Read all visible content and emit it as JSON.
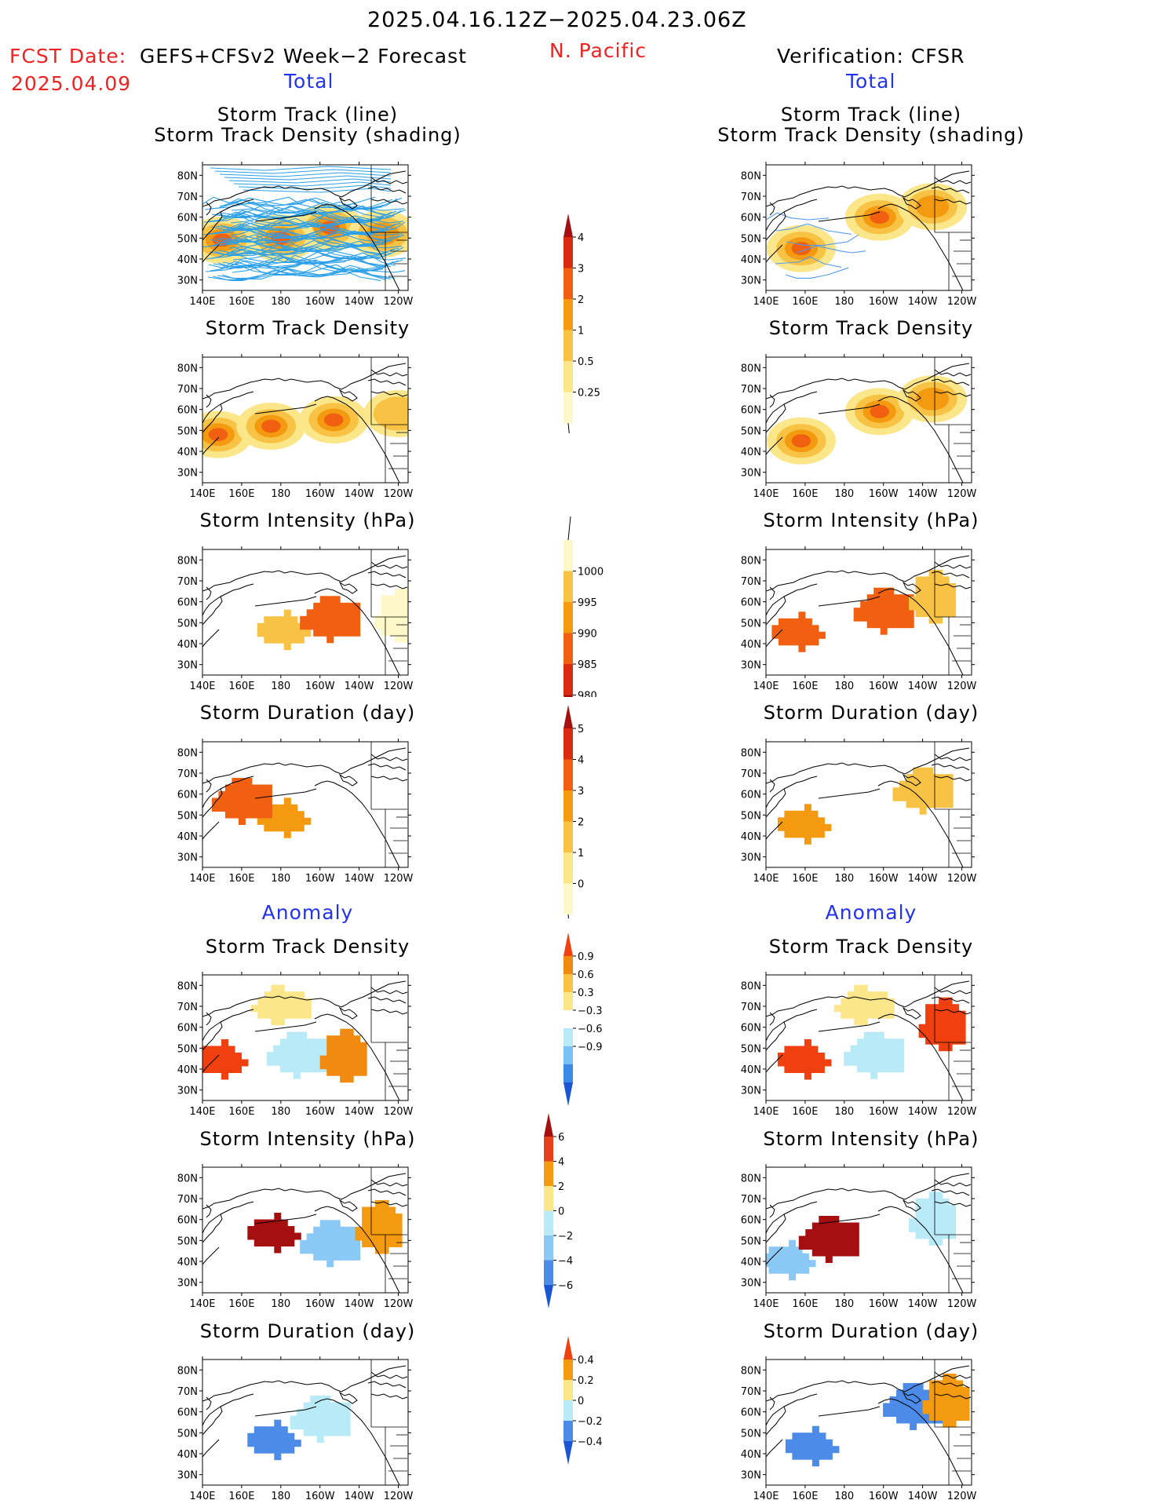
{
  "header": {
    "period": "2025.04.16.12Z−2025.04.23.06Z",
    "region": "N. Pacific",
    "fcst_label": "FCST Date:",
    "fcst_model": "GEFS+CFSv2 Week−2 Forecast",
    "fcst_date": "2025.04.09",
    "verif": "Verification: CFSR",
    "total_left": "Total",
    "total_right": "Total",
    "anom_left": "Anomaly",
    "anom_right": "Anomaly"
  },
  "panel_titles": {
    "track_line": "Storm Track (line)",
    "track_shade": "Storm Track Density (shading)",
    "density": "Storm Track Density",
    "intensity": "Storm Intensity (hPa)",
    "duration": "Storm Duration (day)"
  },
  "axes": {
    "x_ticks": [
      "140E",
      "160E",
      "180",
      "160W",
      "140W",
      "120W"
    ],
    "y_ticks": [
      "80N",
      "70N",
      "60N",
      "50N",
      "40N",
      "30N"
    ]
  },
  "colorbars": {
    "density_total": {
      "labels": [
        "4",
        "3",
        "2",
        "1",
        "0.5",
        "0.25"
      ],
      "colors": [
        "#a50f0f",
        "#d92b10",
        "#f06010",
        "#f49a10",
        "#f8c245",
        "#fbe68a",
        "#fdf8c8"
      ]
    },
    "intensity_total": {
      "labels": [
        "1000",
        "995",
        "990",
        "985",
        "980"
      ],
      "colors": [
        "#fdf8c8",
        "#f8c245",
        "#f49a10",
        "#f06010",
        "#d92b10",
        "#a50f0f"
      ]
    },
    "duration_total": {
      "labels": [
        "5",
        "4",
        "3",
        "2",
        "1",
        "0"
      ],
      "colors": [
        "#a50f0f",
        "#d92b10",
        "#f06010",
        "#f49a10",
        "#f8c245",
        "#fbe68a",
        "#fdf8c8"
      ]
    },
    "density_anom": {
      "labels": [
        "0.9",
        "0.6",
        "0.3",
        "−0.3",
        "−0.6",
        "−0.9"
      ],
      "colors": [
        "#f04010",
        "#f08a10",
        "#f8c245",
        "#fbe68a",
        "#ffffff",
        "#b8eaf8",
        "#78c0f5",
        "#3c8ae8",
        "#1a55d5"
      ]
    },
    "intensity_anom": {
      "labels": [
        "6",
        "4",
        "2",
        "0",
        "−2",
        "−4",
        "−6"
      ],
      "colors": [
        "#a50f0f",
        "#e8401a",
        "#f49a10",
        "#fbe68a",
        "#b8eaf8",
        "#8ac8f5",
        "#4c8ce8",
        "#1a55d5"
      ]
    },
    "duration_anom": {
      "labels": [
        "0.4",
        "0.2",
        "0",
        "−0.2",
        "−0.4"
      ],
      "colors": [
        "#f04010",
        "#f49a10",
        "#fbe68a",
        "#b8eaf8",
        "#4c8ce8",
        "#1a55d5"
      ]
    }
  },
  "chart_data": [
    {
      "type": "heatmap",
      "title": "Storm Track (line) Storm Track Density (shading)",
      "column": "forecast",
      "colorbar": "density_total",
      "xlim": [
        "140E",
        "115W"
      ],
      "ylim": [
        "25N",
        "85N"
      ],
      "blobs": [
        {
          "lon": 150,
          "lat": 49,
          "level": 4
        },
        {
          "lon": 205,
          "lat": 55,
          "level": 4
        },
        {
          "lon": 180,
          "lat": 50,
          "level": 2
        },
        {
          "lon": 232,
          "lat": 52,
          "level": 1
        }
      ]
    },
    {
      "type": "heatmap",
      "title": "Storm Track Density",
      "column": "forecast",
      "colorbar": "density_total",
      "xlim": [
        "140E",
        "115W"
      ],
      "ylim": [
        "25N",
        "85N"
      ],
      "blobs": [
        {
          "lon": 148,
          "lat": 48,
          "level": 4
        },
        {
          "lon": 207,
          "lat": 55,
          "level": 4
        },
        {
          "lon": 175,
          "lat": 52,
          "level": 2
        },
        {
          "lon": 240,
          "lat": 58,
          "level": 0.5
        }
      ]
    },
    {
      "type": "heatmap",
      "title": "Storm Intensity (hPa)",
      "column": "forecast",
      "colorbar": "intensity_total",
      "xlim": [
        "140E",
        "115W"
      ],
      "ylim": [
        "25N",
        "85N"
      ],
      "blobs": [
        {
          "lon": 180,
          "lat": 48,
          "level": 995
        },
        {
          "lon": 205,
          "lat": 53,
          "level": 985
        },
        {
          "lon": 240,
          "lat": 55,
          "level": 1000
        }
      ]
    },
    {
      "type": "heatmap",
      "title": "Storm Duration (day)",
      "column": "forecast",
      "colorbar": "duration_total",
      "xlim": [
        "140E",
        "115W"
      ],
      "ylim": [
        "25N",
        "85N"
      ],
      "blobs": [
        {
          "lon": 180,
          "lat": 50,
          "level": 2
        },
        {
          "lon": 160,
          "lat": 58,
          "level": 3
        }
      ]
    },
    {
      "type": "heatmap",
      "title": "Storm Track Density",
      "column": "forecast-anomaly",
      "colorbar": "density_anom",
      "xlim": [
        "140E",
        "115W"
      ],
      "ylim": [
        "25N",
        "85N"
      ],
      "blobs": [
        {
          "lon": 148,
          "lat": 46,
          "level": 0.9
        },
        {
          "lon": 188,
          "lat": 48,
          "level": -0.9
        },
        {
          "lon": 212,
          "lat": 48,
          "level": 0.6
        },
        {
          "lon": 180,
          "lat": 72,
          "level": -0.3
        }
      ]
    },
    {
      "type": "heatmap",
      "title": "Storm Intensity (hPa)",
      "column": "forecast-anomaly",
      "colorbar": "intensity_anom",
      "xlim": [
        "140E",
        "115W"
      ],
      "ylim": [
        "25N",
        "85N"
      ],
      "blobs": [
        {
          "lon": 175,
          "lat": 55,
          "level": 6
        },
        {
          "lon": 205,
          "lat": 50,
          "level": -4
        },
        {
          "lon": 230,
          "lat": 58,
          "level": 2
        }
      ]
    },
    {
      "type": "heatmap",
      "title": "Storm Duration (day)",
      "column": "forecast-anomaly",
      "colorbar": "duration_anom",
      "xlim": [
        "140E",
        "115W"
      ],
      "ylim": [
        "25N",
        "85N"
      ],
      "blobs": [
        {
          "lon": 175,
          "lat": 48,
          "level": -0.4
        },
        {
          "lon": 200,
          "lat": 58,
          "level": -0.2
        }
      ]
    },
    {
      "type": "heatmap",
      "title": "Storm Track (line) Storm Track Density (shading)",
      "column": "verification",
      "colorbar": "density_total",
      "xlim": [
        "140E",
        "115W"
      ],
      "ylim": [
        "25N",
        "85N"
      ],
      "blobs": [
        {
          "lon": 158,
          "lat": 45,
          "level": 4
        },
        {
          "lon": 198,
          "lat": 60,
          "level": 4
        },
        {
          "lon": 225,
          "lat": 65,
          "level": 1
        }
      ]
    },
    {
      "type": "heatmap",
      "title": "Storm Track Density",
      "column": "verification",
      "colorbar": "density_total",
      "xlim": [
        "140E",
        "115W"
      ],
      "ylim": [
        "25N",
        "85N"
      ],
      "blobs": [
        {
          "lon": 158,
          "lat": 45,
          "level": 4
        },
        {
          "lon": 198,
          "lat": 59,
          "level": 4
        },
        {
          "lon": 225,
          "lat": 65,
          "level": 1
        }
      ]
    },
    {
      "type": "heatmap",
      "title": "Storm Intensity (hPa)",
      "column": "verification",
      "colorbar": "intensity_total",
      "xlim": [
        "140E",
        "115W"
      ],
      "ylim": [
        "25N",
        "85N"
      ],
      "blobs": [
        {
          "lon": 155,
          "lat": 47,
          "level": 985
        },
        {
          "lon": 200,
          "lat": 57,
          "level": 985
        },
        {
          "lon": 225,
          "lat": 64,
          "level": 995
        }
      ]
    },
    {
      "type": "heatmap",
      "title": "Storm Duration (day)",
      "column": "verification",
      "colorbar": "duration_total",
      "xlim": [
        "140E",
        "115W"
      ],
      "ylim": [
        "25N",
        "85N"
      ],
      "blobs": [
        {
          "lon": 158,
          "lat": 47,
          "level": 2
        },
        {
          "lon": 220,
          "lat": 63,
          "level": 1
        }
      ]
    },
    {
      "type": "heatmap",
      "title": "Storm Track Density",
      "column": "verification-anomaly",
      "colorbar": "density_anom",
      "xlim": [
        "140E",
        "115W"
      ],
      "ylim": [
        "25N",
        "85N"
      ],
      "blobs": [
        {
          "lon": 158,
          "lat": 46,
          "level": 0.9
        },
        {
          "lon": 195,
          "lat": 48,
          "level": -0.9
        },
        {
          "lon": 230,
          "lat": 63,
          "level": 0.9
        },
        {
          "lon": 190,
          "lat": 72,
          "level": -0.3
        }
      ]
    },
    {
      "type": "heatmap",
      "title": "Storm Intensity (hPa)",
      "column": "verification-anomaly",
      "colorbar": "intensity_anom",
      "xlim": [
        "140E",
        "115W"
      ],
      "ylim": [
        "25N",
        "85N"
      ],
      "blobs": [
        {
          "lon": 150,
          "lat": 42,
          "level": -4
        },
        {
          "lon": 172,
          "lat": 52,
          "level": 6
        },
        {
          "lon": 225,
          "lat": 62,
          "level": -2
        }
      ]
    },
    {
      "type": "heatmap",
      "title": "Storm Duration (day)",
      "column": "verification-anomaly",
      "colorbar": "duration_anom",
      "xlim": [
        "140E",
        "115W"
      ],
      "ylim": [
        "25N",
        "85N"
      ],
      "blobs": [
        {
          "lon": 162,
          "lat": 45,
          "level": -0.4
        },
        {
          "lon": 215,
          "lat": 64,
          "level": -0.4
        },
        {
          "lon": 232,
          "lat": 67,
          "level": 0.2
        }
      ]
    }
  ]
}
